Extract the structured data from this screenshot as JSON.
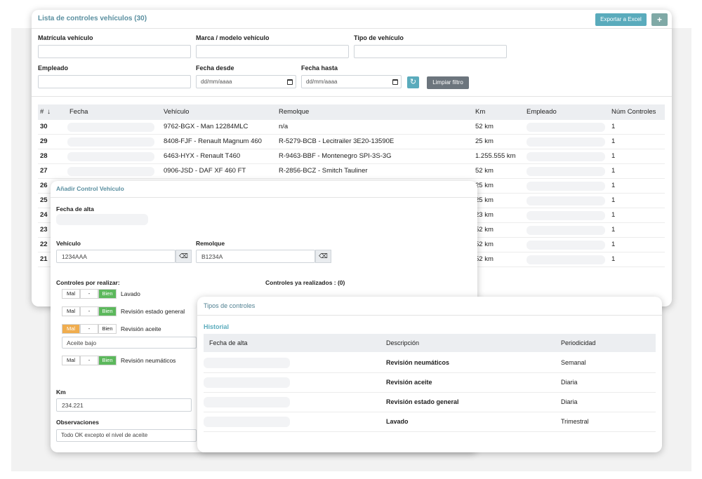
{
  "vehicle_list": {
    "title": "Lista de controles vehículos (30)",
    "export_button": "Exportar a Excel",
    "add_button": "+",
    "filters": [
      {
        "label": "Matrícula vehículo"
      },
      {
        "label": "Marca / modelo vehículo"
      },
      {
        "label": "Tipo de vehículo"
      },
      {
        "label": "Empleado"
      },
      {
        "label": "Fecha desde",
        "placeholder": "dd/mm/aaaa"
      },
      {
        "label": "Fecha hasta",
        "placeholder": "dd/mm/aaaa"
      }
    ],
    "clear_filter_button": "Limpiar filtro",
    "table": {
      "columns": [
        "#",
        "Fecha",
        "Vehículo",
        "Remolque",
        "Km",
        "Empleado",
        "Núm Controles"
      ],
      "rows": [
        {
          "id": 30,
          "vehicle": "9762-BGX - Man 12284MLC",
          "trailer": "n/a",
          "km": "52 km",
          "controls": 1
        },
        {
          "id": 29,
          "vehicle": "8408-FJF - Renault Magnum 460",
          "trailer": "R-5279-BCB - Lecitrailer 3E20-13590E",
          "km": "25 km",
          "controls": 1
        },
        {
          "id": 28,
          "vehicle": "6463-HYX - Renault T460",
          "trailer": "R-9463-BBF - Montenegro SPI-3S-3G",
          "km": "1.255.555 km",
          "controls": 1
        },
        {
          "id": 27,
          "vehicle": "0906-JSD - DAF XF 460 FT",
          "trailer": "R-2856-BCZ - Smitch Tauliner",
          "km": "52 km",
          "controls": 1
        },
        {
          "id": 26,
          "km": "25 km",
          "controls": 1
        },
        {
          "id": 25,
          "km": "25 km",
          "controls": 1
        },
        {
          "id": 24,
          "km": "23 km",
          "controls": 1
        },
        {
          "id": 23,
          "km": "52 km",
          "controls": 1
        },
        {
          "id": 22,
          "km": "52 km",
          "controls": 1
        },
        {
          "id": 21,
          "km": "52 km",
          "controls": 1
        }
      ]
    }
  },
  "add_control": {
    "title": "Añadir Control Vehículo",
    "date_label": "Fecha de alta",
    "vehicle_label": "Vehículo",
    "vehicle_value": "1234AAA",
    "trailer_label": "Remolque",
    "trailer_value": "B1234A",
    "pending_label": "Controles por realizar:",
    "done_label": "Controles ya realizados : (0)",
    "options": [
      "Mal",
      "-",
      "Bien"
    ],
    "controls": [
      {
        "name": "Lavado",
        "selected": "Bien"
      },
      {
        "name": "Revisión estado general",
        "selected": "Bien"
      },
      {
        "name": "Revisión aceite",
        "selected": "Mal",
        "note": "Aceite bajo"
      },
      {
        "name": "Revisión neumáticos",
        "selected": "Bien"
      }
    ],
    "km_label": "Km",
    "km_value": "234.221",
    "notes_label": "Observaciones",
    "notes_value": "Todo OK excepto el nivel de aceite"
  },
  "control_types": {
    "title": "Tipos de controles",
    "section": "Historial",
    "columns": [
      "Fecha de alta",
      "Descripción",
      "Periodicidad"
    ],
    "rows": [
      {
        "description": "Revisión neumáticos",
        "period": "Semanal"
      },
      {
        "description": "Revisión aceite",
        "period": "Diaria"
      },
      {
        "description": "Revisión estado general",
        "period": "Diaria"
      },
      {
        "description": "Lavado",
        "period": "Trimestral"
      }
    ]
  }
}
